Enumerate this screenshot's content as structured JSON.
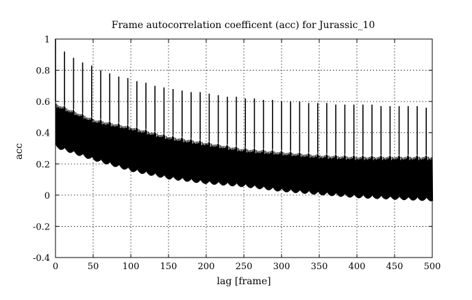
{
  "chart_data": {
    "type": "line",
    "title": "Frame autocorrelation coefficent (acc) for Jurassic_10",
    "xlabel": "lag [frame]",
    "ylabel": "acc",
    "xlim": [
      0,
      500
    ],
    "ylim": [
      -0.4,
      1
    ],
    "xticks": [
      0,
      50,
      100,
      150,
      200,
      250,
      300,
      350,
      400,
      450,
      500
    ],
    "yticks": [
      -0.4,
      -0.2,
      0,
      0.2,
      0.4,
      0.6,
      0.8,
      1
    ],
    "ytick_labels": [
      "-0.4",
      "-0.2",
      "0",
      "0.2",
      "0.4",
      "0.6",
      "0.8",
      "1"
    ],
    "grid": true,
    "grid_style": "dotted",
    "line_color": "#000000",
    "series": [
      {
        "envelope": {
          "x": [
            0,
            50,
            100,
            150,
            200,
            250,
            300,
            350,
            400,
            450,
            500
          ],
          "upper": [
            0.6,
            0.5,
            0.45,
            0.39,
            0.35,
            0.31,
            0.29,
            0.27,
            0.26,
            0.26,
            0.26
          ],
          "lower": [
            0.32,
            0.24,
            0.17,
            0.12,
            0.09,
            0.07,
            0.04,
            0.02,
            0.0,
            -0.01,
            -0.02
          ]
        },
        "gop_period": 12,
        "peaks": {
          "x": [
            0,
            12,
            24,
            36,
            48,
            60,
            72,
            84,
            96,
            108,
            120,
            132,
            144,
            156,
            168,
            180,
            192,
            204,
            216,
            228,
            240,
            252,
            264,
            276,
            288,
            300,
            312,
            324,
            336,
            348,
            360,
            372,
            384,
            396,
            408,
            420,
            432,
            444,
            456,
            468,
            480,
            492
          ],
          "y": [
            1.0,
            0.92,
            0.88,
            0.85,
            0.83,
            0.8,
            0.78,
            0.76,
            0.75,
            0.73,
            0.72,
            0.7,
            0.69,
            0.68,
            0.67,
            0.66,
            0.66,
            0.65,
            0.64,
            0.63,
            0.63,
            0.62,
            0.62,
            0.61,
            0.61,
            0.6,
            0.6,
            0.6,
            0.59,
            0.59,
            0.59,
            0.58,
            0.58,
            0.58,
            0.58,
            0.58,
            0.57,
            0.57,
            0.57,
            0.57,
            0.57,
            0.56
          ]
        }
      }
    ]
  }
}
